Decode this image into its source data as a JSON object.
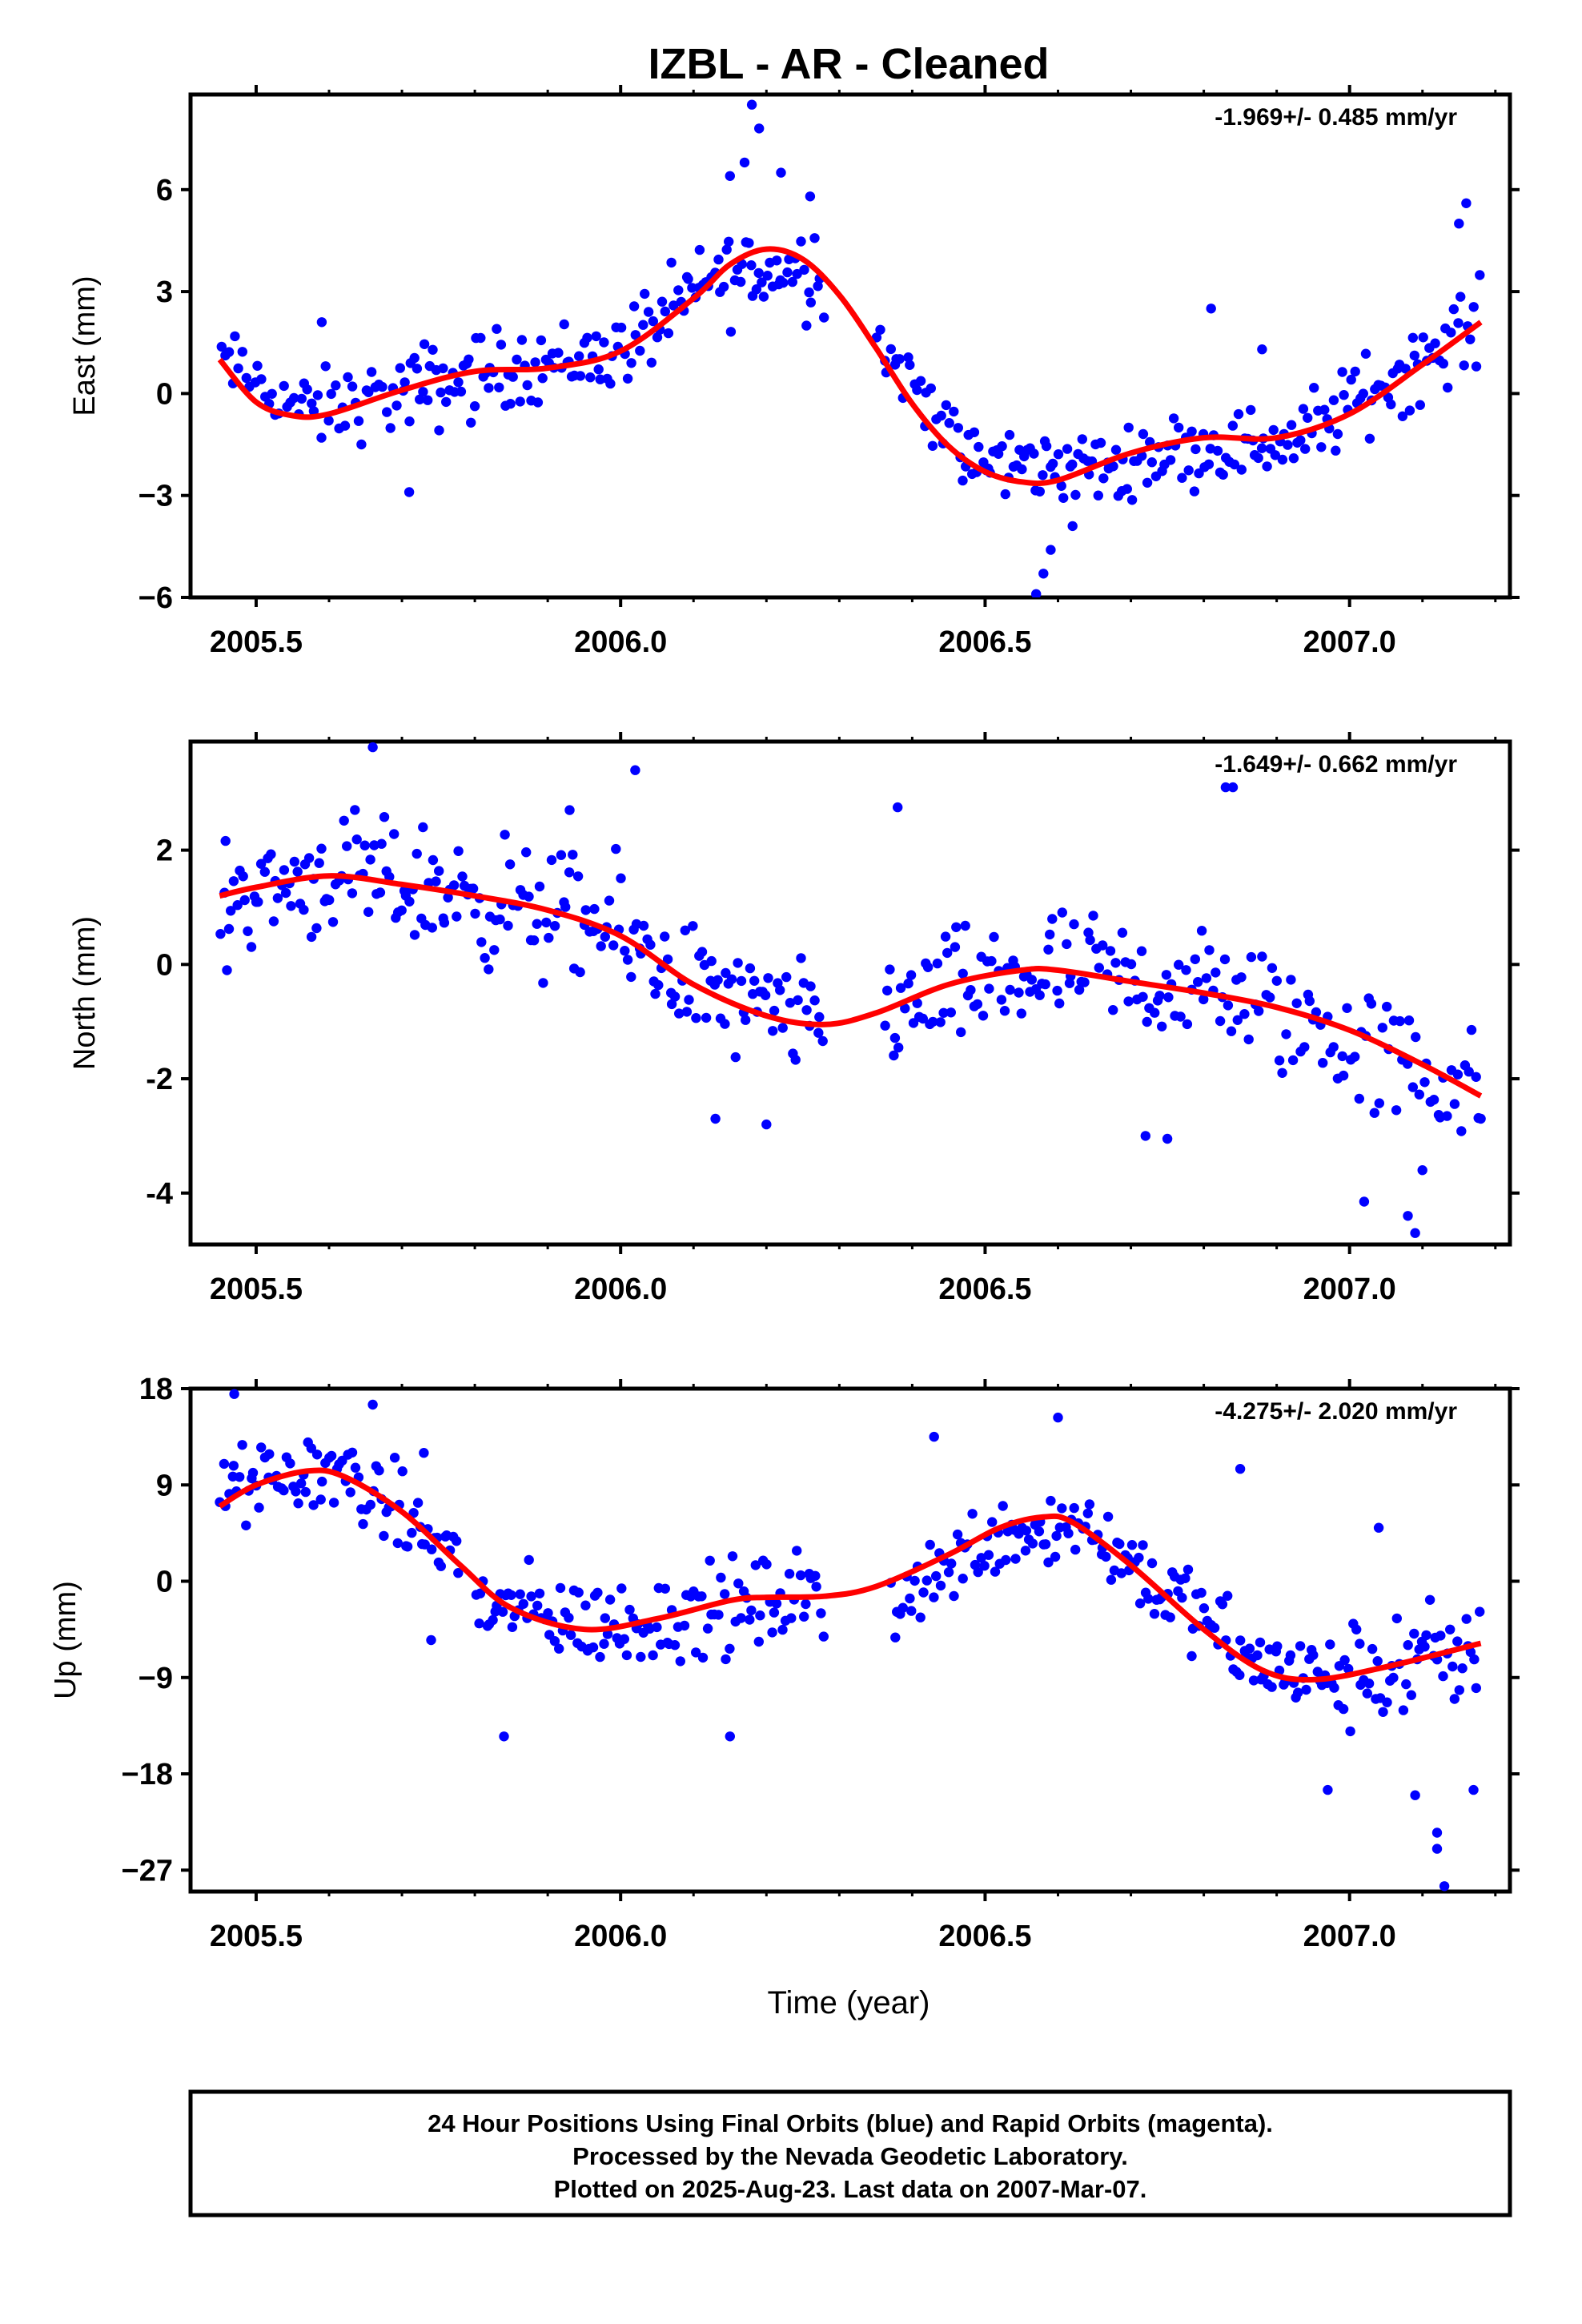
{
  "title": "IZBL  - AR - Cleaned",
  "xlabel": "Time (year)",
  "footer": {
    "lines": [
      "24 Hour Positions Using Final Orbits (blue) and Rapid Orbits (magenta).",
      "Processed by the Nevada Geodetic Laboratory.",
      "Plotted on 2025-Aug-23. Last data on 2007-Mar-07."
    ]
  },
  "colors": {
    "points": "#0000ff",
    "fit": "#ff0000",
    "frame": "#000000"
  },
  "chart_data": [
    {
      "type": "scatter",
      "name": "east",
      "ylabel": "East (mm)",
      "rate_label": "-1.969+/- 0.485 mm/yr",
      "xlim": [
        2005.41,
        2007.22
      ],
      "ylim": [
        -6,
        8.8
      ],
      "xticks": [
        2005.5,
        2006.0,
        2006.5,
        2007.0
      ],
      "xtick_labels": [
        "2005.5",
        "2006.0",
        "2006.5",
        "2007.0"
      ],
      "yticks": [
        -6,
        -3,
        0,
        3,
        6
      ],
      "ytick_labels": [
        "−6",
        "−3",
        "0",
        "3",
        "6"
      ],
      "fit": {
        "x": [
          2005.45,
          2005.5,
          2005.55,
          2005.6,
          2005.7,
          2005.8,
          2005.9,
          2006.0,
          2006.1,
          2006.15,
          2006.2,
          2006.25,
          2006.3,
          2006.35,
          2006.4,
          2006.45,
          2006.5,
          2006.55,
          2006.6,
          2006.7,
          2006.8,
          2006.9,
          2007.0,
          2007.1,
          2007.18
        ],
        "y": [
          1.0,
          -0.25,
          -0.65,
          -0.6,
          0.1,
          0.65,
          0.75,
          1.25,
          2.8,
          3.8,
          4.25,
          3.95,
          2.9,
          1.35,
          -0.3,
          -1.55,
          -2.3,
          -2.6,
          -2.55,
          -1.75,
          -1.3,
          -1.3,
          -0.6,
          0.85,
          2.1
        ]
      },
      "points": {
        "segments": [
          {
            "x0": 2005.45,
            "x1": 2005.56,
            "base": [
              1.0,
              -0.4
            ],
            "amp": 1.1,
            "n": 22
          },
          {
            "x0": 2005.56,
            "x1": 2005.7,
            "base": [
              -0.6,
              0.0
            ],
            "amp": 1.3,
            "n": 30
          },
          {
            "x0": 2005.7,
            "x1": 2005.82,
            "base": [
              0.0,
              0.6
            ],
            "amp": 1.5,
            "n": 32
          },
          {
            "x0": 2005.82,
            "x1": 2006.0,
            "base": [
              0.7,
              1.2
            ],
            "amp": 1.3,
            "n": 45
          },
          {
            "x0": 2006.0,
            "x1": 2006.12,
            "base": [
              1.3,
              3.2
            ],
            "amp": 1.4,
            "n": 30
          },
          {
            "x0": 2006.12,
            "x1": 2006.28,
            "base": [
              3.4,
              3.8
            ],
            "amp": 1.6,
            "n": 42
          },
          {
            "x0": 2006.35,
            "x1": 2006.46,
            "base": [
              1.6,
              -1.2
            ],
            "amp": 1.3,
            "n": 24
          },
          {
            "x0": 2006.46,
            "x1": 2006.7,
            "base": [
              -2.0,
              -2.2
            ],
            "amp": 1.2,
            "n": 62
          },
          {
            "x0": 2006.7,
            "x1": 2006.95,
            "base": [
              -1.8,
              -1.3
            ],
            "amp": 1.2,
            "n": 62
          },
          {
            "x0": 2006.95,
            "x1": 2007.18,
            "base": [
              -1.0,
              2.1
            ],
            "amp": 1.4,
            "n": 55
          }
        ],
        "extra": [
          [
            2006.18,
            8.5
          ],
          [
            2006.19,
            7.8
          ],
          [
            2006.17,
            6.8
          ],
          [
            2006.15,
            6.4
          ],
          [
            2006.26,
            5.8
          ],
          [
            2006.22,
            6.5
          ],
          [
            2006.57,
            -5.9
          ],
          [
            2006.58,
            -5.3
          ],
          [
            2006.59,
            -4.6
          ],
          [
            2005.71,
            -2.9
          ],
          [
            2006.81,
            2.5
          ],
          [
            2007.16,
            5.6
          ],
          [
            2007.15,
            5.0
          ],
          [
            2005.59,
            2.1
          ],
          [
            2006.88,
            1.3
          ],
          [
            2006.62,
            -3.9
          ]
        ]
      }
    },
    {
      "type": "scatter",
      "name": "north",
      "ylabel": "North (mm)",
      "rate_label": "-1.649+/- 0.662 mm/yr",
      "xlim": [
        2005.41,
        2007.22
      ],
      "ylim": [
        -4.9,
        3.9
      ],
      "xticks": [
        2005.5,
        2006.0,
        2006.5,
        2007.0
      ],
      "xtick_labels": [
        "2005.5",
        "2006.0",
        "2006.5",
        "2007.0"
      ],
      "yticks": [
        -4,
        -2,
        0,
        2
      ],
      "ytick_labels": [
        "-4",
        "-2",
        "0",
        "2"
      ],
      "fit": {
        "x": [
          2005.45,
          2005.5,
          2005.6,
          2005.7,
          2005.8,
          2005.9,
          2006.0,
          2006.1,
          2006.2,
          2006.28,
          2006.35,
          2006.45,
          2006.55,
          2006.6,
          2006.7,
          2006.8,
          2006.9,
          2007.0,
          2007.1,
          2007.18
        ],
        "y": [
          1.2,
          1.35,
          1.55,
          1.4,
          1.2,
          0.95,
          0.5,
          -0.35,
          -0.9,
          -1.05,
          -0.85,
          -0.35,
          -0.1,
          -0.1,
          -0.3,
          -0.5,
          -0.75,
          -1.15,
          -1.75,
          -2.3
        ]
      },
      "points": {
        "segments": [
          {
            "x0": 2005.45,
            "x1": 2005.6,
            "base": [
              1.2,
              1.55
            ],
            "amp": 1.1,
            "n": 40
          },
          {
            "x0": 2005.6,
            "x1": 2005.78,
            "base": [
              1.55,
              1.25
            ],
            "amp": 1.2,
            "n": 48
          },
          {
            "x0": 2005.78,
            "x1": 2006.0,
            "base": [
              1.25,
              0.55
            ],
            "amp": 1.3,
            "n": 55
          },
          {
            "x0": 2006.0,
            "x1": 2006.14,
            "base": [
              0.5,
              -0.6
            ],
            "amp": 1.2,
            "n": 36
          },
          {
            "x0": 2006.14,
            "x1": 2006.28,
            "base": [
              -0.7,
              -1.05
            ],
            "amp": 1.1,
            "n": 36
          },
          {
            "x0": 2006.36,
            "x1": 2006.6,
            "base": [
              -0.8,
              -0.1
            ],
            "amp": 1.2,
            "n": 60
          },
          {
            "x0": 2006.6,
            "x1": 2006.85,
            "base": [
              -0.1,
              -0.55
            ],
            "amp": 1.2,
            "n": 58
          },
          {
            "x0": 2006.85,
            "x1": 2007.18,
            "base": [
              -0.6,
              -2.3
            ],
            "amp": 1.3,
            "n": 70
          }
        ],
        "extra": [
          [
            2005.66,
            3.8
          ],
          [
            2006.02,
            3.4
          ],
          [
            2005.93,
            2.7
          ],
          [
            2006.83,
            3.1
          ],
          [
            2006.84,
            3.1
          ],
          [
            2006.38,
            2.75
          ],
          [
            2006.72,
            -3.0
          ],
          [
            2006.75,
            -3.05
          ],
          [
            2007.09,
            -4.7
          ],
          [
            2007.08,
            -4.4
          ],
          [
            2007.02,
            -4.15
          ],
          [
            2007.1,
            -3.6
          ],
          [
            2006.2,
            -2.8
          ],
          [
            2006.13,
            -2.7
          ],
          [
            2007.18,
            -2.7
          ],
          [
            2005.46,
            -0.1
          ]
        ]
      }
    },
    {
      "type": "scatter",
      "name": "up",
      "ylabel": "Up (mm)",
      "rate_label": "-4.275+/- 2.020 mm/yr",
      "xlim": [
        2005.41,
        2007.22
      ],
      "ylim": [
        -29,
        18
      ],
      "xticks": [
        2005.5,
        2006.0,
        2006.5,
        2007.0
      ],
      "xtick_labels": [
        "2005.5",
        "2006.0",
        "2006.5",
        "2007.0"
      ],
      "yticks": [
        -27,
        -18,
        -9,
        0,
        9,
        18
      ],
      "ytick_labels": [
        "−27",
        "−18",
        "−9",
        "0",
        "9",
        "18"
      ],
      "fit": {
        "x": [
          2005.45,
          2005.5,
          2005.57,
          2005.62,
          2005.7,
          2005.78,
          2005.85,
          2005.95,
          2006.05,
          2006.15,
          2006.2,
          2006.28,
          2006.35,
          2006.45,
          2006.52,
          2006.58,
          2006.62,
          2006.7,
          2006.8,
          2006.88,
          2006.95,
          2007.05,
          2007.18
        ],
        "y": [
          7.0,
          9.0,
          10.3,
          9.8,
          6.5,
          1.5,
          -2.5,
          -4.5,
          -3.5,
          -1.8,
          -1.5,
          -1.4,
          -0.5,
          2.5,
          5.0,
          6.0,
          5.5,
          1.5,
          -4.5,
          -8.3,
          -9.2,
          -8.0,
          -5.8
        ]
      },
      "points": {
        "segments": [
          {
            "x0": 2005.45,
            "x1": 2005.62,
            "base": [
              8.5,
              10.5
            ],
            "amp": 4.2,
            "n": 45
          },
          {
            "x0": 2005.62,
            "x1": 2005.78,
            "base": [
              10.0,
              2.0
            ],
            "amp": 4.5,
            "n": 42
          },
          {
            "x0": 2005.8,
            "x1": 2006.0,
            "base": [
              -2.0,
              -4.5
            ],
            "amp": 4.5,
            "n": 55
          },
          {
            "x0": 2006.0,
            "x1": 2006.28,
            "base": [
              -4.0,
              -1.4
            ],
            "amp": 5.0,
            "n": 72
          },
          {
            "x0": 2006.37,
            "x1": 2006.5,
            "base": [
              -2.0,
              3.5
            ],
            "amp": 4.5,
            "n": 32
          },
          {
            "x0": 2006.5,
            "x1": 2006.65,
            "base": [
              4.5,
              5.5
            ],
            "amp": 4.5,
            "n": 40
          },
          {
            "x0": 2006.65,
            "x1": 2006.85,
            "base": [
              4.5,
              -6.5
            ],
            "amp": 4.5,
            "n": 55
          },
          {
            "x0": 2006.85,
            "x1": 2007.0,
            "base": [
              -7.5,
              -9.5
            ],
            "amp": 4.5,
            "n": 42
          },
          {
            "x0": 2007.0,
            "x1": 2007.18,
            "base": [
              -9.0,
              -6.5
            ],
            "amp": 6.0,
            "n": 48
          }
        ],
        "extra": [
          [
            2005.66,
            16.5
          ],
          [
            2005.47,
            17.5
          ],
          [
            2005.73,
            12.0
          ],
          [
            2006.15,
            -14.5
          ],
          [
            2005.84,
            -14.5
          ],
          [
            2006.6,
            15.3
          ],
          [
            2006.85,
            10.5
          ],
          [
            2007.04,
            5.0
          ],
          [
            2007.12,
            -25.0
          ],
          [
            2007.13,
            -28.5
          ],
          [
            2007.12,
            -23.5
          ],
          [
            2007.09,
            -20.0
          ],
          [
            2007.17,
            -19.5
          ],
          [
            2006.97,
            -19.5
          ],
          [
            2006.43,
            13.5
          ],
          [
            2005.74,
            -5.5
          ]
        ]
      }
    }
  ]
}
